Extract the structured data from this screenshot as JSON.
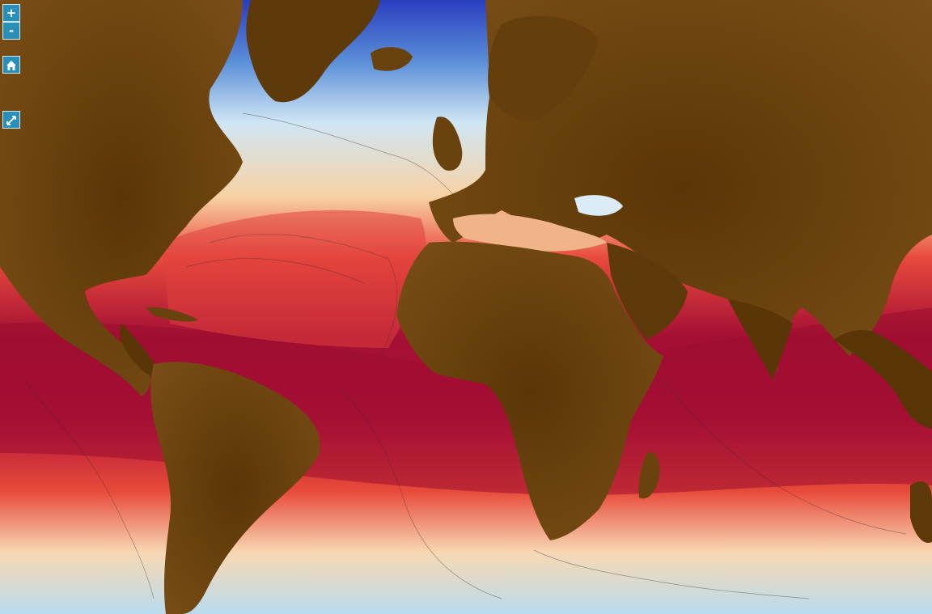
{
  "map": {
    "land_color": "#5c3a08",
    "land_highlight_color": "#8a5a1c",
    "warm_ocean_color": "#8c0a2e",
    "cool_ocean_color": "#9fd0ea",
    "deep_cold_color": "#2a3ec0",
    "tropical_ocean_color": "#d8243a",
    "temperate_ocean_color": "#f4a078"
  },
  "controls": {
    "zoom_in_label": "+",
    "zoom_out_label": "-",
    "zoom_in_icon": "plus-icon",
    "zoom_out_icon": "minus-icon",
    "home_icon": "home-icon",
    "fullscreen_icon": "expand-icon"
  }
}
